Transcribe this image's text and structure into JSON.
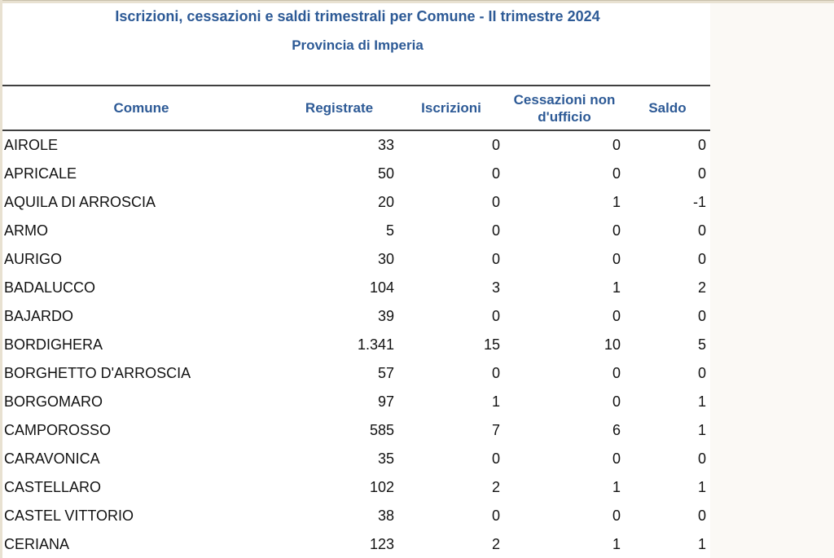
{
  "page": {
    "title_line1": "Iscrizioni, cessazioni e saldi trimestrali per Comune - II trimestre 2024",
    "title_line2": "Provincia di Imperia"
  },
  "table": {
    "columns": [
      {
        "key": "comune",
        "label": "Comune"
      },
      {
        "key": "registrate",
        "label": "Registrate"
      },
      {
        "key": "iscrizioni",
        "label": "Iscrizioni"
      },
      {
        "key": "cessazioni",
        "label": "Cessazioni non d'ufficio"
      },
      {
        "key": "saldo",
        "label": "Saldo"
      }
    ],
    "rows": [
      [
        "AIROLE",
        "33",
        "0",
        "0",
        "0"
      ],
      [
        "APRICALE",
        "50",
        "0",
        "0",
        "0"
      ],
      [
        "AQUILA DI ARROSCIA",
        "20",
        "0",
        "1",
        "-1"
      ],
      [
        "ARMO",
        "5",
        "0",
        "0",
        "0"
      ],
      [
        "AURIGO",
        "30",
        "0",
        "0",
        "0"
      ],
      [
        "BADALUCCO",
        "104",
        "3",
        "1",
        "2"
      ],
      [
        "BAJARDO",
        "39",
        "0",
        "0",
        "0"
      ],
      [
        "BORDIGHERA",
        "1.341",
        "15",
        "10",
        "5"
      ],
      [
        "BORGHETTO D'ARROSCIA",
        "57",
        "0",
        "0",
        "0"
      ],
      [
        "BORGOMARO",
        "97",
        "1",
        "0",
        "1"
      ],
      [
        "CAMPOROSSO",
        "585",
        "7",
        "6",
        "1"
      ],
      [
        "CARAVONICA",
        "35",
        "0",
        "0",
        "0"
      ],
      [
        "CASTELLARO",
        "102",
        "2",
        "1",
        "1"
      ],
      [
        "CASTEL VITTORIO",
        "38",
        "0",
        "0",
        "0"
      ],
      [
        "CERIANA",
        "123",
        "2",
        "1",
        "1"
      ]
    ]
  },
  "colors": {
    "accent_blue": "#2d5a96",
    "data_text": "#121212",
    "rule_line": "#3f3f3f",
    "beige_edge": "#e8e1d1"
  }
}
